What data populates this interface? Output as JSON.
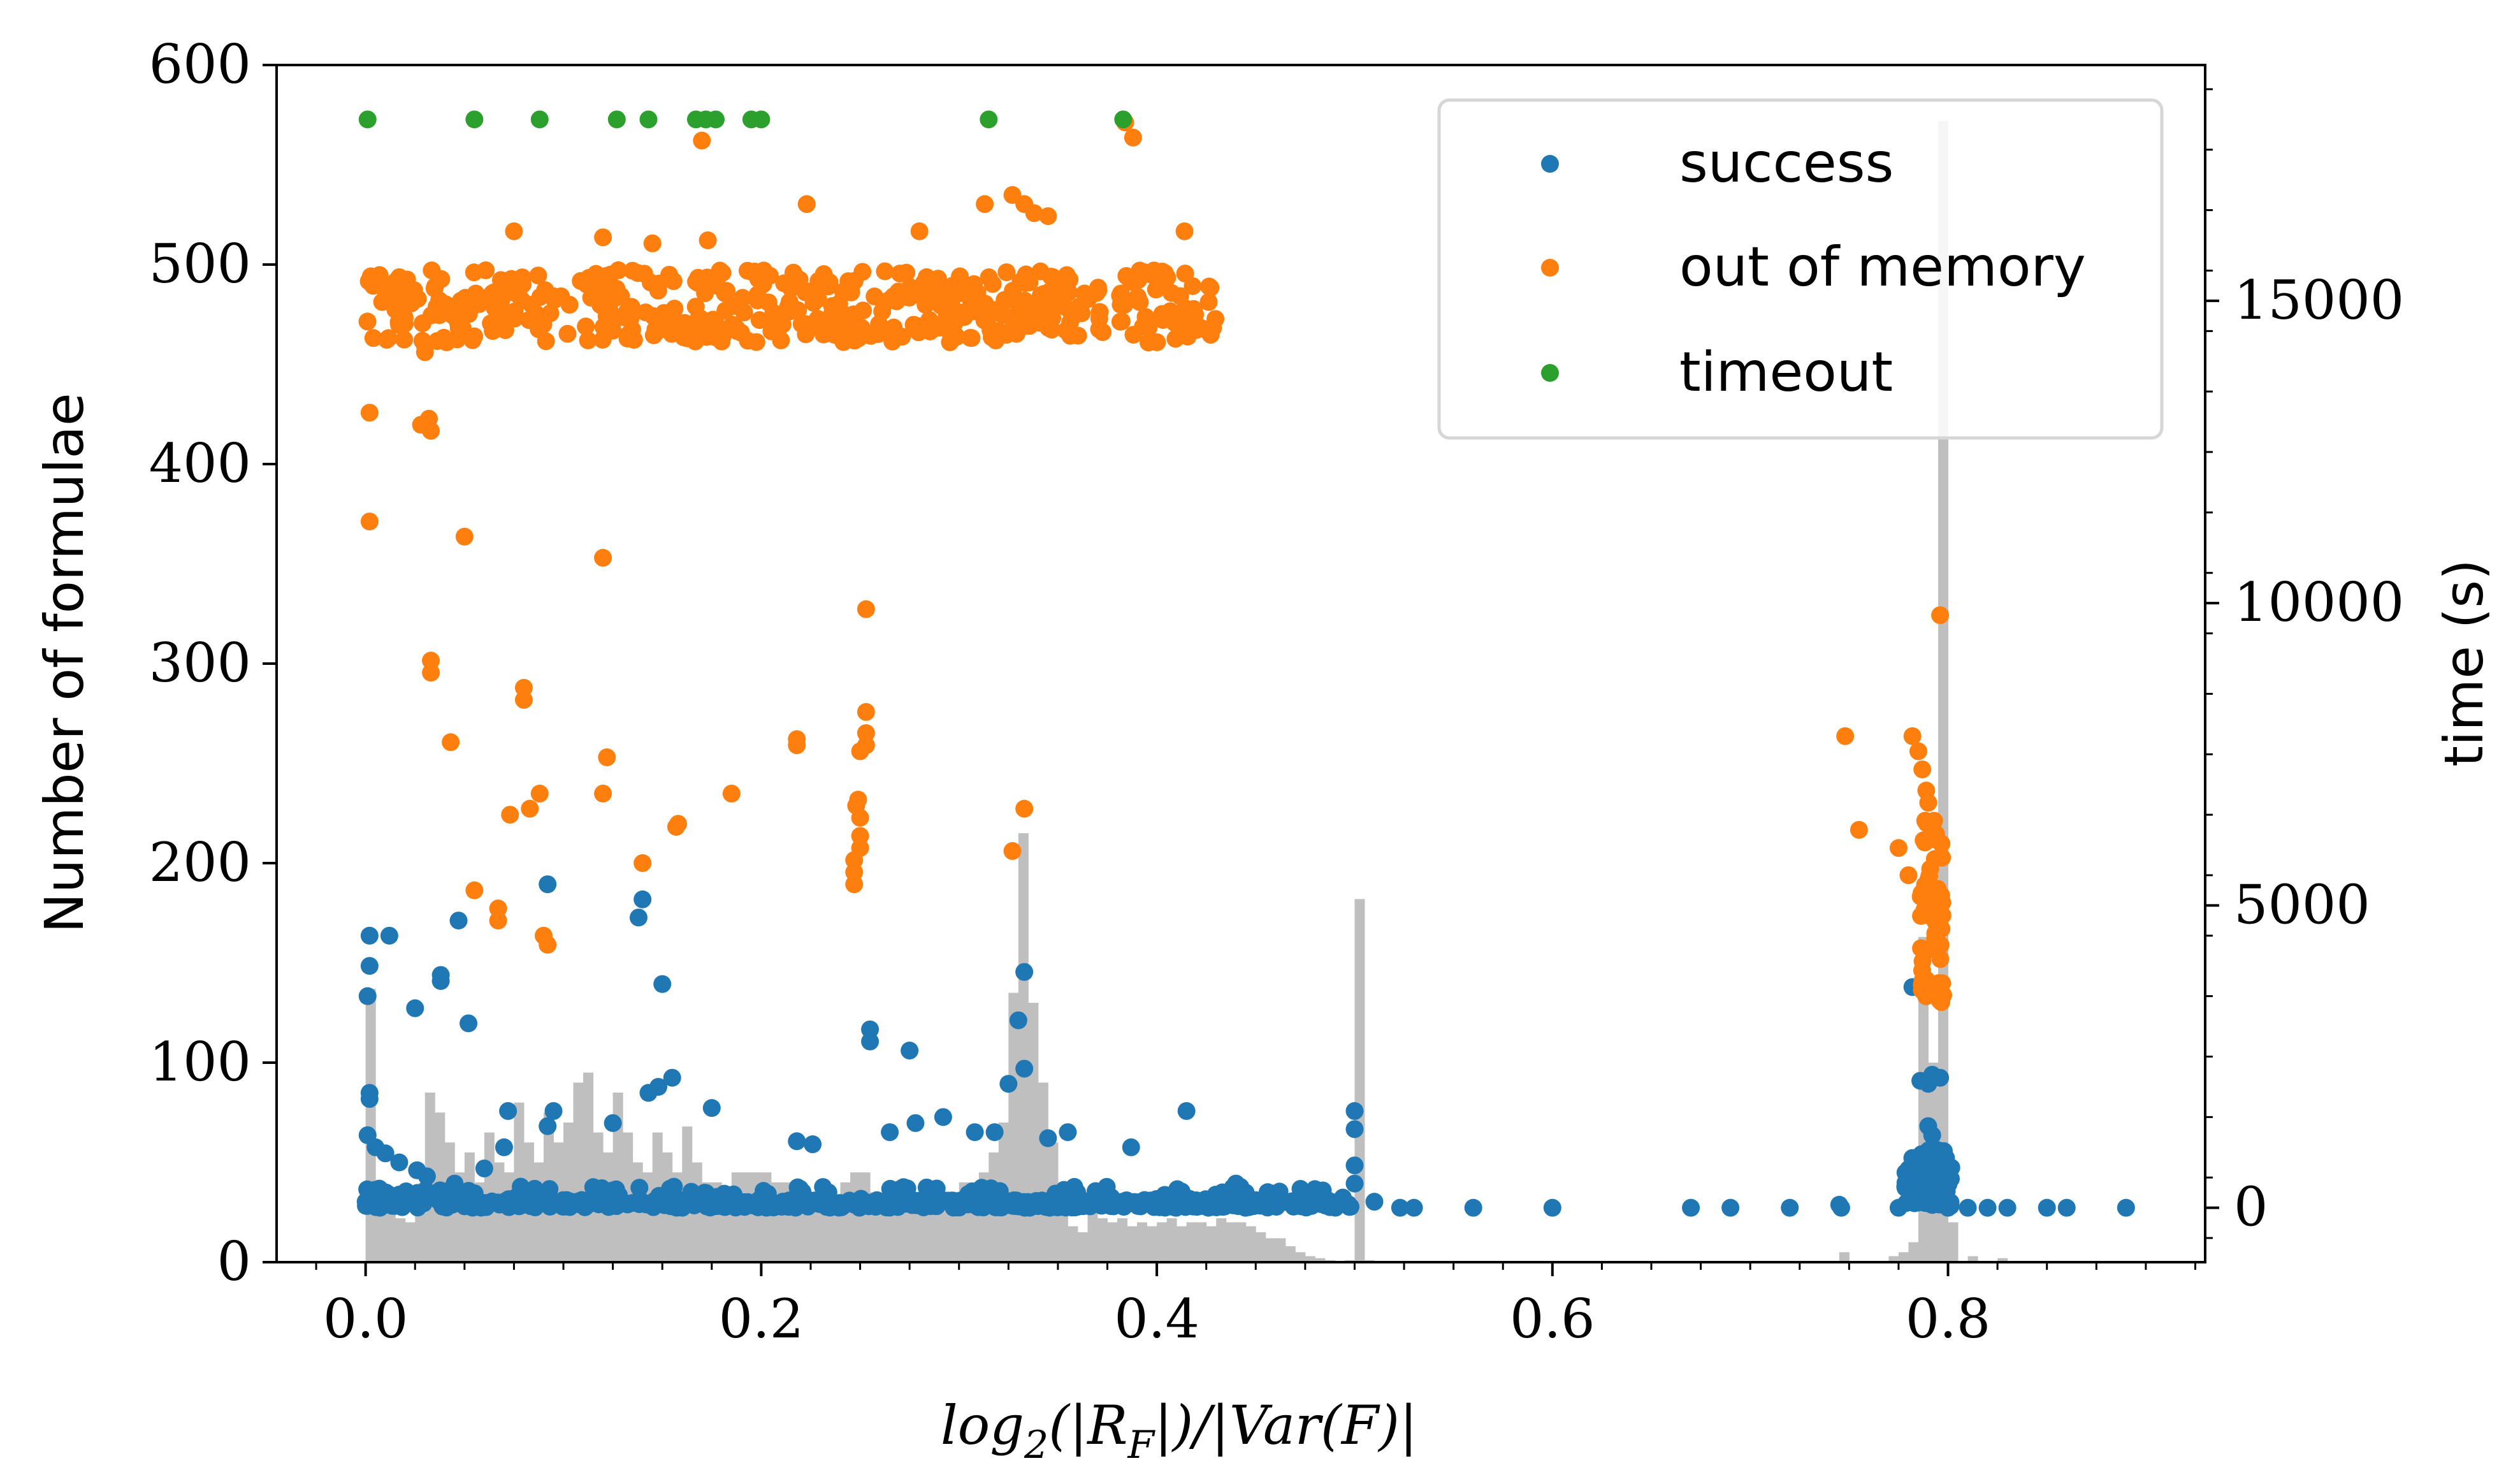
{
  "chart_data": {
    "type": "scatter",
    "xlabel": "log₂(|R_F|)/|Var(F)|",
    "xlabel_parts": {
      "base": "log",
      "sub": "2",
      "rest_a": "(|R",
      "sub2": "F",
      "rest_b": "|)/|Var(F)|"
    },
    "ylabel": "Number of formulae",
    "ylabel_right": "time (s)",
    "xlim": [
      -0.045,
      0.93
    ],
    "ylim": [
      0,
      600
    ],
    "ylim_right": [
      -900,
      18900
    ],
    "x_ticks": [
      0.0,
      0.2,
      0.4,
      0.6,
      0.8
    ],
    "x_tick_labels": [
      "0.0",
      "0.2",
      "0.4",
      "0.6",
      "0.8"
    ],
    "y_ticks": [
      0,
      100,
      200,
      300,
      400,
      500,
      600
    ],
    "y_tick_labels": [
      "0",
      "100",
      "200",
      "300",
      "400",
      "500",
      "600"
    ],
    "y_right_ticks": [
      0,
      5000,
      10000,
      15000
    ],
    "y_right_tick_labels": [
      "0",
      "5000",
      "10000",
      "15000"
    ],
    "grid": false,
    "legend_position": "top-right",
    "histogram": {
      "name": "",
      "color": "#bfbfbf",
      "bin_width": 0.005,
      "bins": [
        [
          0.0,
          137
        ],
        [
          0.005,
          30
        ],
        [
          0.01,
          25
        ],
        [
          0.015,
          22
        ],
        [
          0.02,
          20
        ],
        [
          0.025,
          30
        ],
        [
          0.03,
          85
        ],
        [
          0.035,
          75
        ],
        [
          0.04,
          60
        ],
        [
          0.045,
          45
        ],
        [
          0.05,
          55
        ],
        [
          0.055,
          40
        ],
        [
          0.06,
          65
        ],
        [
          0.065,
          50
        ],
        [
          0.07,
          45
        ],
        [
          0.075,
          80
        ],
        [
          0.08,
          60
        ],
        [
          0.085,
          50
        ],
        [
          0.09,
          75
        ],
        [
          0.095,
          60
        ],
        [
          0.1,
          70
        ],
        [
          0.105,
          90
        ],
        [
          0.11,
          95
        ],
        [
          0.115,
          65
        ],
        [
          0.12,
          55
        ],
        [
          0.125,
          85
        ],
        [
          0.13,
          65
        ],
        [
          0.135,
          50
        ],
        [
          0.14,
          45
        ],
        [
          0.145,
          65
        ],
        [
          0.15,
          55
        ],
        [
          0.155,
          45
        ],
        [
          0.16,
          68
        ],
        [
          0.165,
          50
        ],
        [
          0.17,
          40
        ],
        [
          0.175,
          40
        ],
        [
          0.18,
          35
        ],
        [
          0.185,
          45
        ],
        [
          0.19,
          45
        ],
        [
          0.195,
          45
        ],
        [
          0.2,
          45
        ],
        [
          0.205,
          40
        ],
        [
          0.21,
          40
        ],
        [
          0.215,
          35
        ],
        [
          0.22,
          30
        ],
        [
          0.225,
          35
        ],
        [
          0.23,
          35
        ],
        [
          0.235,
          32
        ],
        [
          0.24,
          40
        ],
        [
          0.245,
          45
        ],
        [
          0.25,
          45
        ],
        [
          0.255,
          35
        ],
        [
          0.26,
          35
        ],
        [
          0.265,
          30
        ],
        [
          0.27,
          30
        ],
        [
          0.275,
          35
        ],
        [
          0.28,
          35
        ],
        [
          0.285,
          28
        ],
        [
          0.29,
          30
        ],
        [
          0.295,
          35
        ],
        [
          0.3,
          40
        ],
        [
          0.305,
          40
        ],
        [
          0.31,
          45
        ],
        [
          0.315,
          55
        ],
        [
          0.32,
          70
        ],
        [
          0.325,
          135
        ],
        [
          0.33,
          215
        ],
        [
          0.335,
          130
        ],
        [
          0.34,
          90
        ],
        [
          0.345,
          60
        ],
        [
          0.35,
          30
        ],
        [
          0.355,
          18
        ],
        [
          0.36,
          15
        ],
        [
          0.365,
          25
        ],
        [
          0.37,
          22
        ],
        [
          0.375,
          20
        ],
        [
          0.38,
          22
        ],
        [
          0.385,
          18
        ],
        [
          0.39,
          20
        ],
        [
          0.395,
          18
        ],
        [
          0.4,
          20
        ],
        [
          0.405,
          22
        ],
        [
          0.41,
          18
        ],
        [
          0.415,
          20
        ],
        [
          0.42,
          20
        ],
        [
          0.425,
          18
        ],
        [
          0.43,
          22
        ],
        [
          0.435,
          20
        ],
        [
          0.44,
          20
        ],
        [
          0.445,
          18
        ],
        [
          0.45,
          15
        ],
        [
          0.455,
          12
        ],
        [
          0.46,
          12
        ],
        [
          0.465,
          8
        ],
        [
          0.47,
          5
        ],
        [
          0.475,
          3
        ],
        [
          0.48,
          2
        ],
        [
          0.485,
          1
        ],
        [
          0.495,
          1
        ],
        [
          0.5,
          182
        ],
        [
          0.505,
          1
        ],
        [
          0.745,
          5
        ],
        [
          0.77,
          3
        ],
        [
          0.775,
          5
        ],
        [
          0.78,
          10
        ],
        [
          0.785,
          163
        ],
        [
          0.79,
          100
        ],
        [
          0.795,
          572
        ],
        [
          0.8,
          20
        ],
        [
          0.81,
          3
        ],
        [
          0.825,
          2
        ]
      ]
    },
    "series": [
      {
        "name": "success",
        "color": "#1f77b4",
        "axis": "right",
        "points": [
          [
            0.002,
            4500
          ],
          [
            0.002,
            4000
          ],
          [
            0.001,
            3500
          ],
          [
            0.012,
            4500
          ],
          [
            0.025,
            3300
          ],
          [
            0.038,
            3750
          ],
          [
            0.038,
            3850
          ],
          [
            0.047,
            4750
          ],
          [
            0.052,
            3050
          ],
          [
            0.092,
            5350
          ],
          [
            0.14,
            5100
          ],
          [
            0.15,
            3700
          ],
          [
            0.138,
            4800
          ],
          [
            0.275,
            2600
          ],
          [
            0.255,
            2950
          ],
          [
            0.255,
            2750
          ],
          [
            0.333,
            3900
          ],
          [
            0.33,
            3100
          ],
          [
            0.002,
            1800
          ],
          [
            0.002,
            1900
          ],
          [
            0.001,
            1200
          ],
          [
            0.005,
            1000
          ],
          [
            0.01,
            900
          ],
          [
            0.017,
            750
          ],
          [
            0.026,
            620
          ],
          [
            0.031,
            520
          ],
          [
            0.045,
            400
          ],
          [
            0.06,
            650
          ],
          [
            0.072,
            1600
          ],
          [
            0.07,
            1000
          ],
          [
            0.095,
            1600
          ],
          [
            0.092,
            1350
          ],
          [
            0.125,
            1400
          ],
          [
            0.143,
            1900
          ],
          [
            0.148,
            2000
          ],
          [
            0.155,
            2150
          ],
          [
            0.175,
            1650
          ],
          [
            0.218,
            1100
          ],
          [
            0.226,
            1050
          ],
          [
            0.278,
            1400
          ],
          [
            0.265,
            1250
          ],
          [
            0.292,
            1500
          ],
          [
            0.308,
            1250
          ],
          [
            0.318,
            1250
          ],
          [
            0.325,
            2050
          ],
          [
            0.333,
            2300
          ],
          [
            0.345,
            1150
          ],
          [
            0.355,
            1250
          ],
          [
            0.387,
            1000
          ],
          [
            0.415,
            1600
          ],
          [
            0.44,
            400
          ],
          [
            0.48,
            150
          ],
          [
            0.5,
            1600
          ],
          [
            0.5,
            1300
          ],
          [
            0.5,
            700
          ],
          [
            0.5,
            400
          ],
          [
            0.51,
            100
          ],
          [
            0.523,
            0
          ],
          [
            0.53,
            0
          ],
          [
            0.56,
            0
          ],
          [
            0.6,
            0
          ],
          [
            0.67,
            0
          ],
          [
            0.69,
            0
          ],
          [
            0.72,
            0
          ],
          [
            0.745,
            50
          ],
          [
            0.746,
            0
          ],
          [
            0.775,
            0
          ],
          [
            0.782,
            3650
          ],
          [
            0.786,
            2100
          ],
          [
            0.79,
            2050
          ],
          [
            0.792,
            2200
          ],
          [
            0.796,
            2150
          ],
          [
            0.79,
            1350
          ],
          [
            0.792,
            1200
          ],
          [
            0.795,
            950
          ],
          [
            0.796,
            850
          ],
          [
            0.785,
            700
          ],
          [
            0.788,
            450
          ],
          [
            0.82,
            0
          ],
          [
            0.83,
            0
          ],
          [
            0.85,
            0
          ],
          [
            0.86,
            0
          ],
          [
            0.89,
            0
          ],
          [
            0.8,
            0
          ],
          [
            0.81,
            0
          ]
        ],
        "band": {
          "x_start": 0.0,
          "x_end": 0.5,
          "base": 0,
          "scatter": 350,
          "count": 650
        },
        "cluster": {
          "x_center": 0.79,
          "x_spread": 0.012,
          "y_min": 0,
          "y_max": 1000,
          "count": 70
        }
      },
      {
        "name": "out of memory",
        "color": "#ff7f0e",
        "axis": "right",
        "points": [
          [
            0.002,
            13150
          ],
          [
            0.002,
            11350
          ],
          [
            0.028,
            12950
          ],
          [
            0.03,
            14150
          ],
          [
            0.03,
            14250
          ],
          [
            0.032,
            13050
          ],
          [
            0.033,
            12850
          ],
          [
            0.033,
            9050
          ],
          [
            0.033,
            8850
          ],
          [
            0.043,
            7700
          ],
          [
            0.05,
            11100
          ],
          [
            0.055,
            5250
          ],
          [
            0.067,
            4950
          ],
          [
            0.067,
            4750
          ],
          [
            0.073,
            6500
          ],
          [
            0.08,
            8600
          ],
          [
            0.08,
            8400
          ],
          [
            0.083,
            6600
          ],
          [
            0.088,
            6850
          ],
          [
            0.09,
            4500
          ],
          [
            0.092,
            4350
          ],
          [
            0.12,
            10750
          ],
          [
            0.122,
            7450
          ],
          [
            0.12,
            6850
          ],
          [
            0.14,
            5700
          ],
          [
            0.158,
            6350
          ],
          [
            0.157,
            6300
          ],
          [
            0.185,
            6850
          ],
          [
            0.218,
            7750
          ],
          [
            0.218,
            7650
          ],
          [
            0.247,
            5550
          ],
          [
            0.247,
            5350
          ],
          [
            0.247,
            5750
          ],
          [
            0.25,
            5950
          ],
          [
            0.25,
            6150
          ],
          [
            0.25,
            6450
          ],
          [
            0.248,
            6650
          ],
          [
            0.249,
            6750
          ],
          [
            0.25,
            7550
          ],
          [
            0.253,
            7650
          ],
          [
            0.253,
            7850
          ],
          [
            0.253,
            8200
          ],
          [
            0.253,
            9900
          ],
          [
            0.327,
            5900
          ],
          [
            0.333,
            6600
          ],
          [
            0.17,
            17650
          ],
          [
            0.384,
            17950
          ],
          [
            0.388,
            17700
          ],
          [
            0.075,
            16150
          ],
          [
            0.12,
            16050
          ],
          [
            0.145,
            15950
          ],
          [
            0.173,
            16000
          ],
          [
            0.223,
            16600
          ],
          [
            0.28,
            16150
          ],
          [
            0.313,
            16600
          ],
          [
            0.327,
            16750
          ],
          [
            0.333,
            16600
          ],
          [
            0.338,
            16450
          ],
          [
            0.345,
            16400
          ],
          [
            0.414,
            16150
          ],
          [
            0.748,
            7800
          ],
          [
            0.755,
            6250
          ],
          [
            0.775,
            5950
          ],
          [
            0.78,
            5500
          ],
          [
            0.782,
            7800
          ],
          [
            0.785,
            7550
          ],
          [
            0.787,
            7250
          ],
          [
            0.789,
            6900
          ],
          [
            0.79,
            6700
          ],
          [
            0.793,
            6400
          ],
          [
            0.796,
            9800
          ]
        ],
        "band": {
          "x_start": 0.0,
          "x_end": 0.43,
          "base": 14850,
          "scatter": 600,
          "count": 480
        },
        "cluster": {
          "x_center": 0.792,
          "x_spread": 0.006,
          "y_min": 3400,
          "y_max": 6500,
          "count": 60
        }
      },
      {
        "name": "timeout",
        "color": "#2ca02c",
        "axis": "right",
        "points": [
          [
            0.001,
            18000
          ],
          [
            0.055,
            18000
          ],
          [
            0.088,
            18000
          ],
          [
            0.127,
            18000
          ],
          [
            0.143,
            18000
          ],
          [
            0.167,
            18000
          ],
          [
            0.172,
            18000
          ],
          [
            0.177,
            18000
          ],
          [
            0.195,
            18000
          ],
          [
            0.2,
            18000
          ],
          [
            0.315,
            18000
          ],
          [
            0.383,
            18000
          ]
        ]
      }
    ]
  }
}
